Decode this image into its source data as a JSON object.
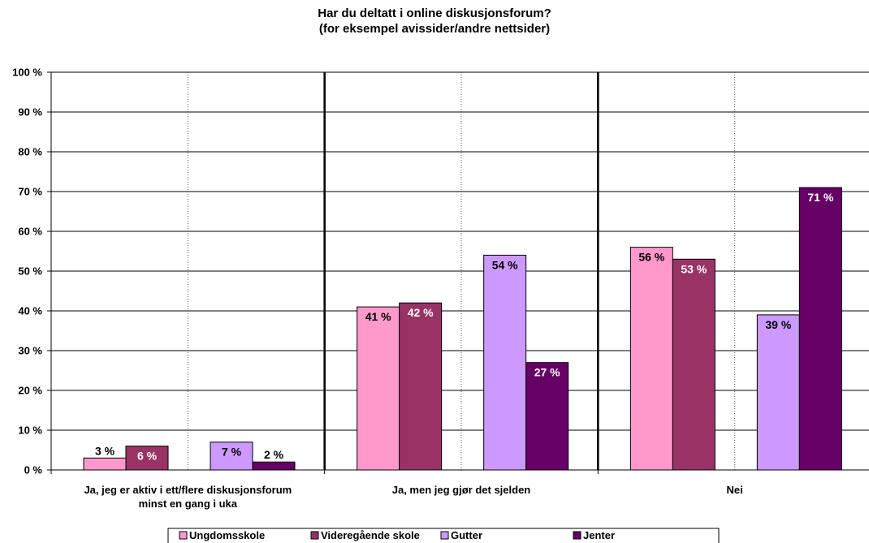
{
  "chart_data": {
    "type": "bar",
    "title_lines": [
      "Har du deltatt i online diskusjonsforum?",
      "(for eksempel avissider/andre nettsider)"
    ],
    "categories": [
      [
        "Ja, jeg er aktiv i ett/flere diskusjonsforum",
        "minst en gang i uka"
      ],
      [
        "Ja, men jeg gjør det sjelden"
      ],
      [
        "Nei"
      ]
    ],
    "series": [
      {
        "name": "Ungdomsskole",
        "color": "#FF99CC",
        "values": [
          3,
          41,
          56
        ],
        "labels": [
          "3 %",
          "41 %",
          "56 %"
        ],
        "label_color": "#000000"
      },
      {
        "name": "Videregående skole",
        "color": "#993366",
        "values": [
          6,
          42,
          53
        ],
        "labels": [
          "6 %",
          "42 %",
          "53 %"
        ],
        "label_color": "#FFFFFF"
      },
      {
        "name": "Gutter",
        "color": "#CC99FF",
        "values": [
          7,
          54,
          39
        ],
        "labels": [
          "7 %",
          "54 %",
          "39 %"
        ],
        "label_color": "#000000"
      },
      {
        "name": "Jenter",
        "color": "#660066",
        "values": [
          2,
          27,
          71
        ],
        "labels": [
          "2 %",
          "27 %",
          "71 %"
        ],
        "label_color": "#FFFFFF"
      }
    ],
    "ylim": [
      0,
      100
    ],
    "yticks": [
      0,
      10,
      20,
      30,
      40,
      50,
      60,
      70,
      80,
      90,
      100
    ],
    "ytick_labels": [
      "0 %",
      "10 %",
      "20 %",
      "30 %",
      "40 %",
      "50 %",
      "60 %",
      "70 %",
      "80 %",
      "90 %",
      "100 %"
    ],
    "grid": true,
    "legend_position": "bottom"
  }
}
